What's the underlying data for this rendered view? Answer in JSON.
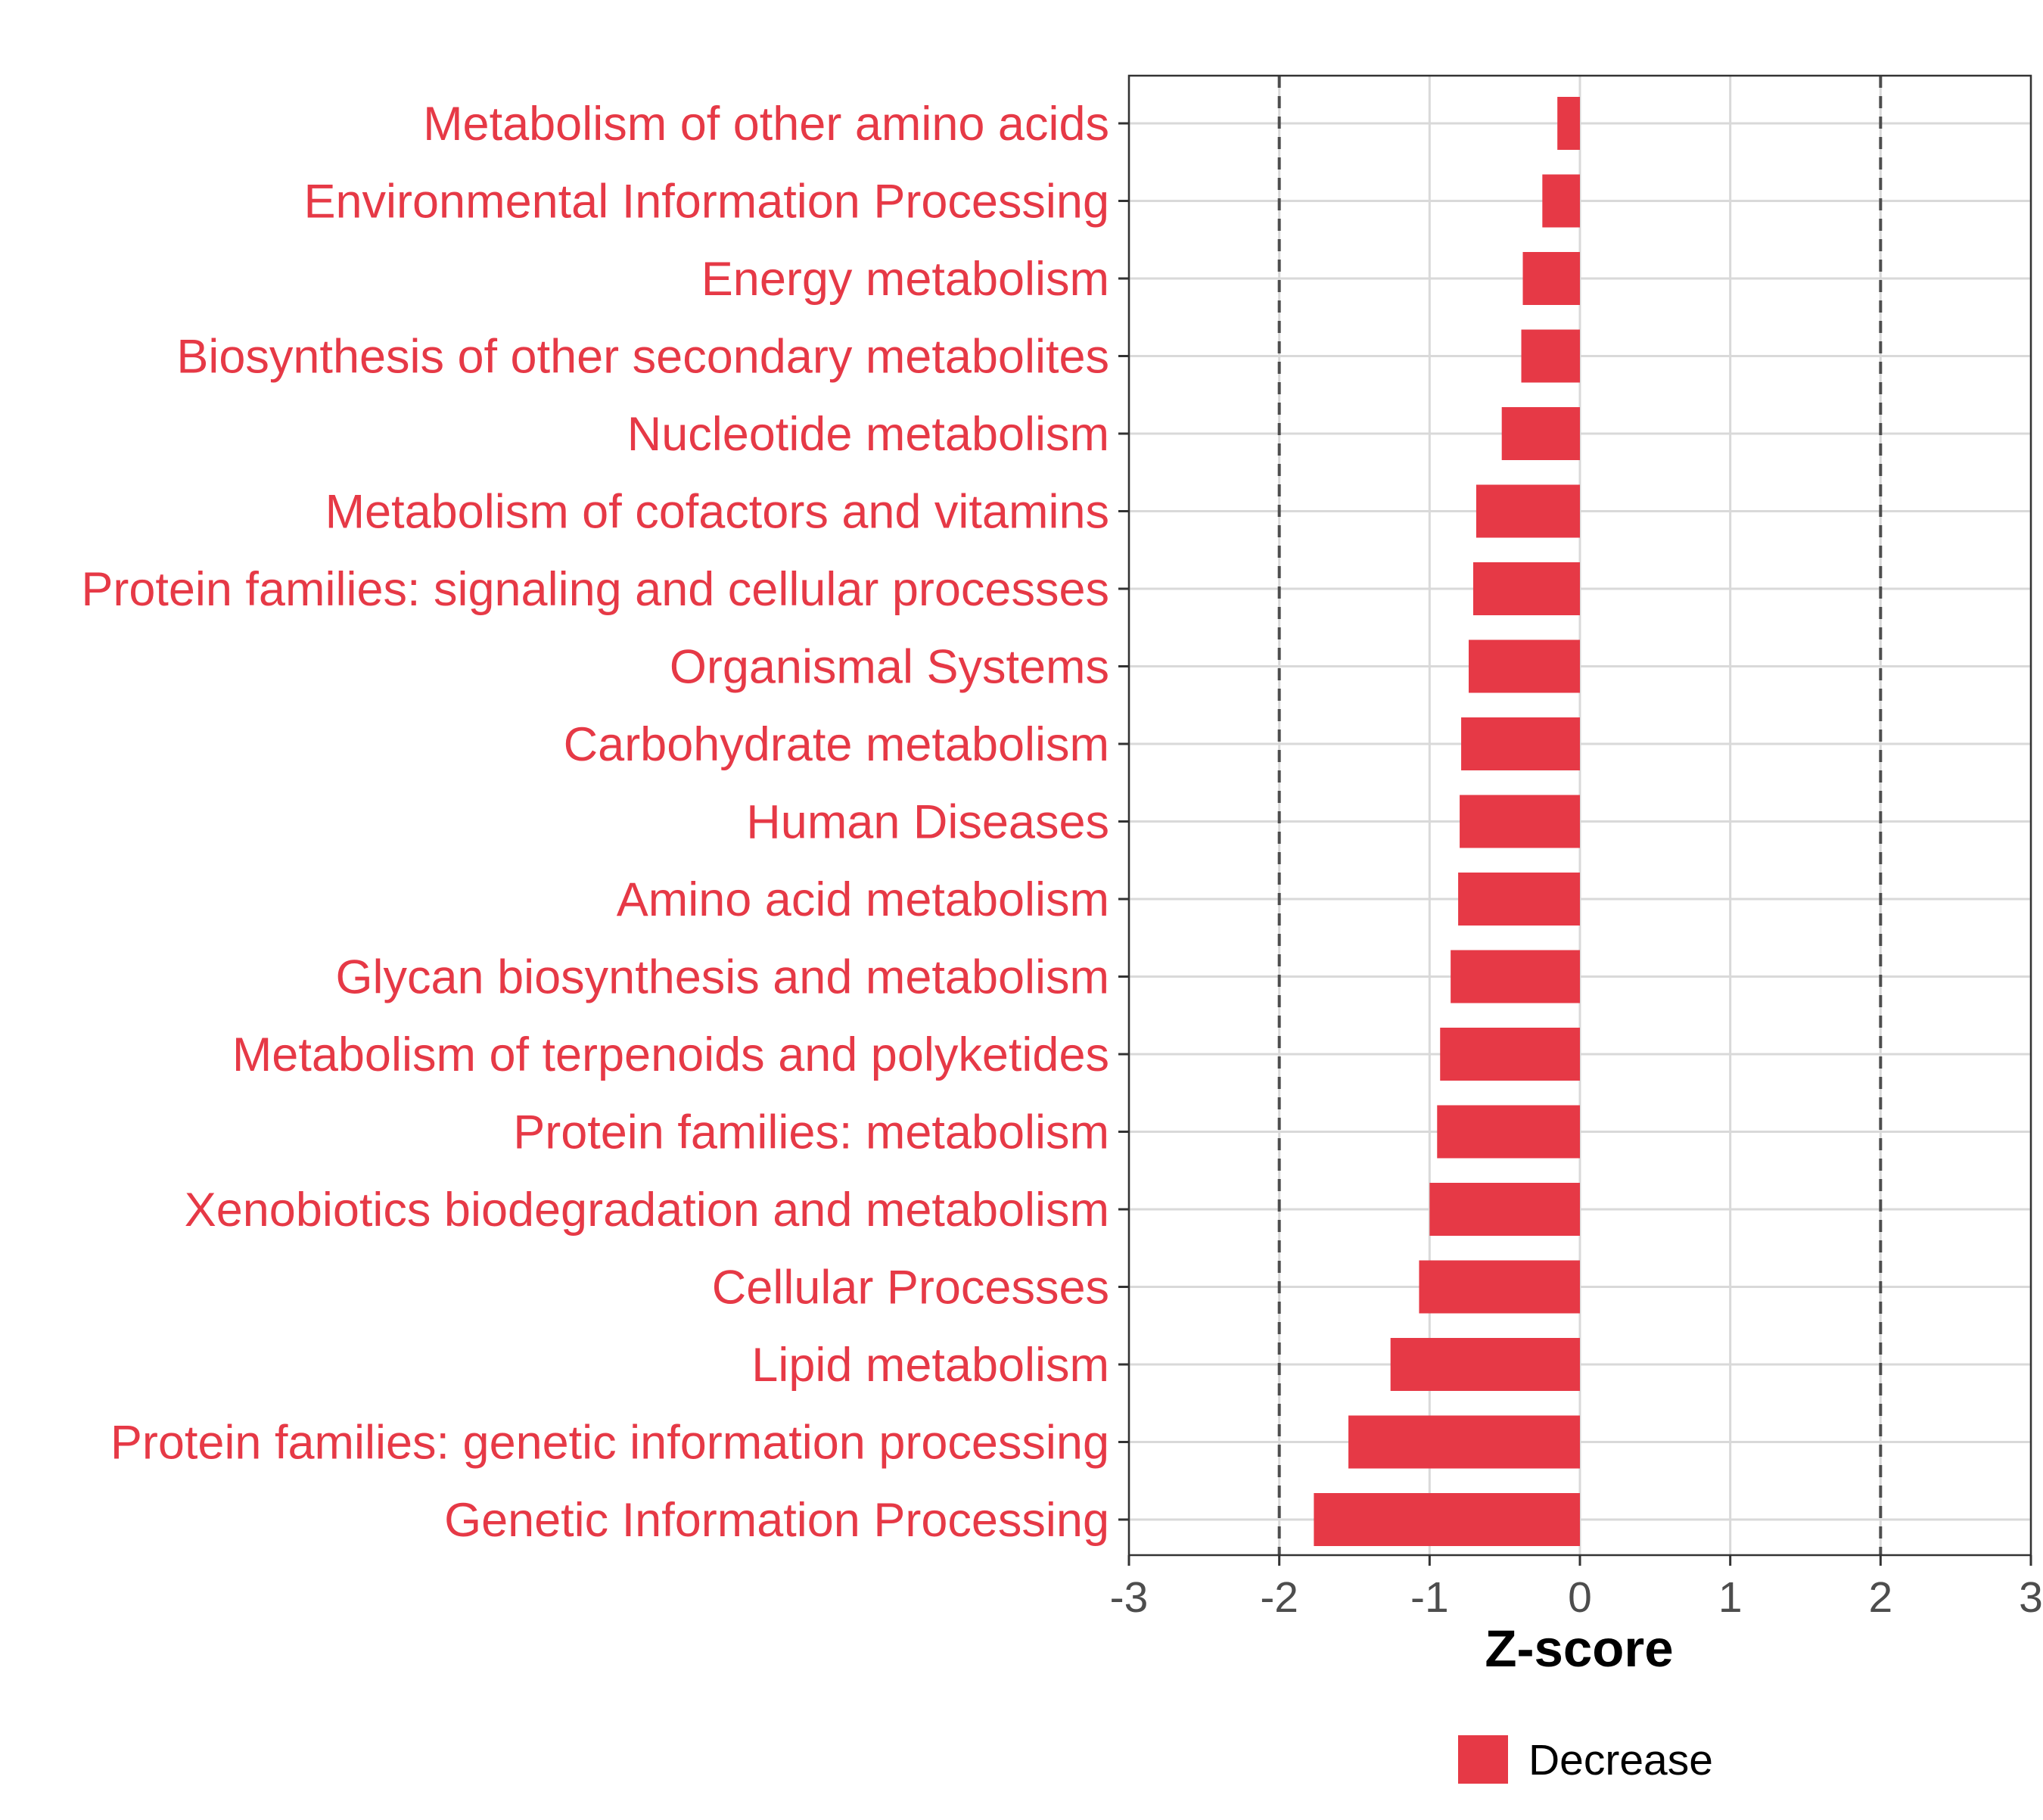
{
  "chart_data": {
    "type": "bar",
    "orientation": "horizontal",
    "xlabel": "Z-score",
    "ylabel": "",
    "xlim": [
      -3,
      3
    ],
    "x_ticks": [
      -3,
      -2,
      -1,
      0,
      1,
      2,
      3
    ],
    "threshold_lines": [
      -2,
      2
    ],
    "grid": true,
    "legend_position": "bottom",
    "series": [
      {
        "name": "Decrease",
        "color": "#e63946",
        "categories": [
          "Metabolism of other amino acids",
          "Environmental Information Processing",
          "Energy metabolism",
          "Biosynthesis of other secondary metabolites",
          "Nucleotide metabolism",
          "Metabolism of cofactors and vitamins",
          "Protein families: signaling and cellular processes",
          "Organismal Systems",
          "Carbohydrate metabolism",
          "Human Diseases",
          "Amino acid metabolism",
          "Glycan biosynthesis and metabolism",
          "Metabolism of terpenoids and polyketides",
          "Protein families: metabolism",
          "Xenobiotics biodegradation and metabolism",
          "Cellular Processes",
          "Lipid metabolism",
          "Protein families: genetic information processing",
          "Genetic Information Processing"
        ],
        "values": [
          -0.15,
          -0.25,
          -0.38,
          -0.39,
          -0.52,
          -0.69,
          -0.71,
          -0.74,
          -0.79,
          -0.8,
          -0.81,
          -0.86,
          -0.93,
          -0.95,
          -1.0,
          -1.07,
          -1.26,
          -1.54,
          -1.77
        ]
      }
    ]
  }
}
